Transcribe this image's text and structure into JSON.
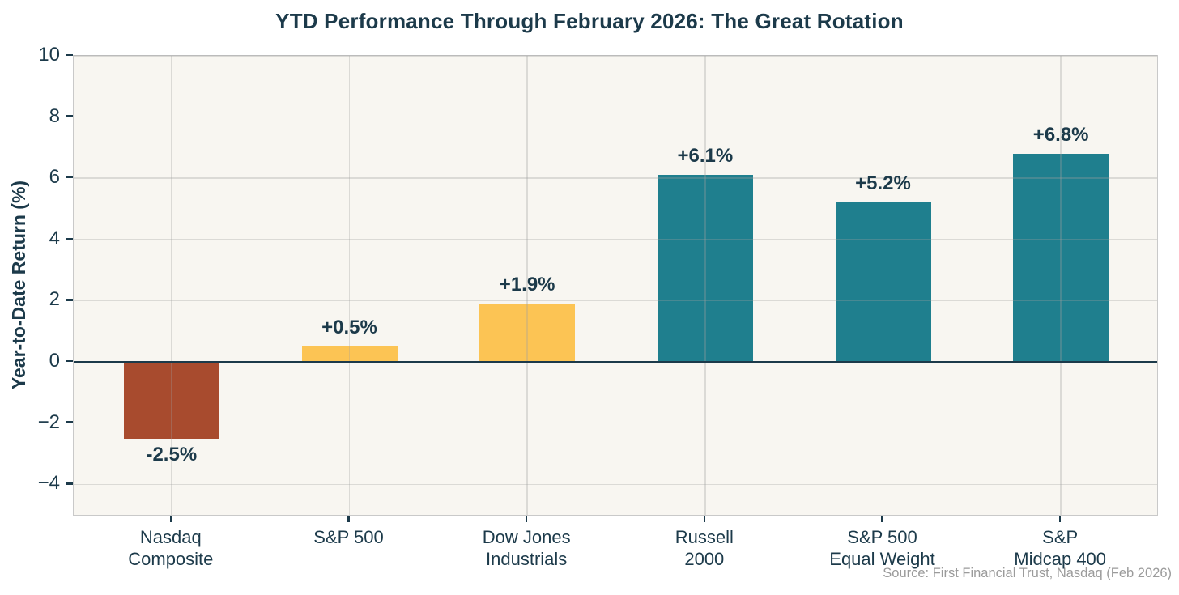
{
  "chart_data": {
    "type": "bar",
    "title": "YTD Performance Through February 2026: The Great Rotation",
    "ylabel": "Year-to-Date Return (%)",
    "xlabel": "",
    "source": "Source: First Financial Trust, Nasdaq (Feb 2026)",
    "categories": [
      "Nasdaq\nComposite",
      "S&P 500",
      "Dow Jones\nIndustrials",
      "Russell\n2000",
      "S&P 500\nEqual Weight",
      "S&P\nMidcap 400"
    ],
    "values": [
      -2.5,
      0.5,
      1.9,
      6.1,
      5.2,
      6.8
    ],
    "value_labels": [
      "-2.5%",
      "+0.5%",
      "+1.9%",
      "+6.1%",
      "+5.2%",
      "+6.8%"
    ],
    "bar_colors": [
      "#a84b2e",
      "#fcc454",
      "#fcc454",
      "#1f7f8e",
      "#1f7f8e",
      "#1f7f8e"
    ],
    "yticks": [
      10,
      8,
      6,
      4,
      2,
      0,
      -2,
      -4
    ],
    "ytick_labels": [
      "10",
      "8",
      "6",
      "4",
      "2",
      "0",
      "−2",
      "−4"
    ],
    "ylim": [
      -5.05,
      10
    ],
    "grid": true,
    "legend": null,
    "colors": {
      "text_dark": "#1c3a4a",
      "negative_bar": "#a84b2e",
      "caution_bar": "#fcc454",
      "positive_bar": "#1f7f8e",
      "plot_background": "#f8f6f1",
      "spine": "#c9c9c9",
      "gridline": "#a0a0a0",
      "zero_line": "#1c3a4a",
      "source_text": "#9b9b9b"
    }
  }
}
